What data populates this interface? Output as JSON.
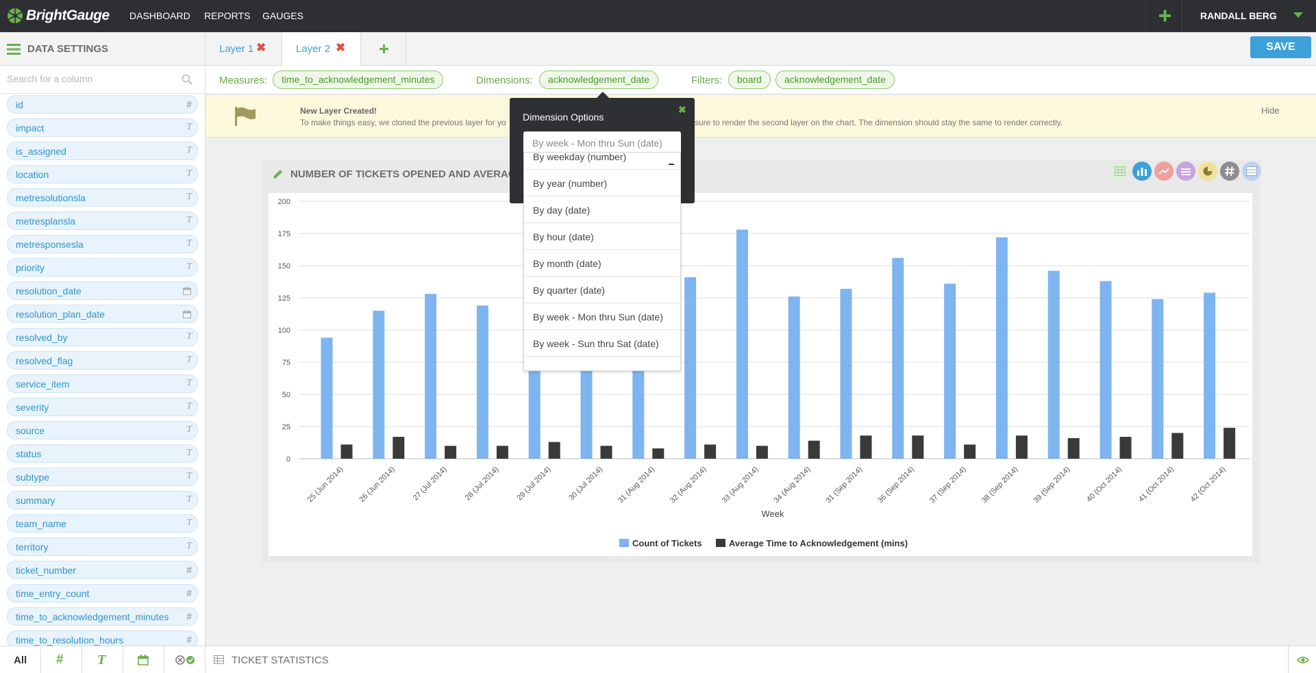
{
  "app": {
    "name": "BrightGauge"
  },
  "nav": [
    {
      "label": "DASHBOARD"
    },
    {
      "label": "REPORTS"
    },
    {
      "label": "GAUGES"
    }
  ],
  "user": {
    "name": "RANDALL BERG"
  },
  "subbar": {
    "title": "DATA SETTINGS",
    "save_label": "SAVE"
  },
  "tabs": [
    {
      "label": "Layer 1"
    },
    {
      "label": "Layer 2"
    }
  ],
  "search": {
    "placeholder": "Search for a column"
  },
  "columns": [
    {
      "name": "id",
      "type": "#"
    },
    {
      "name": "impact",
      "type": "T"
    },
    {
      "name": "is_assigned",
      "type": "T"
    },
    {
      "name": "location",
      "type": "T"
    },
    {
      "name": "metresolutionsla",
      "type": "T"
    },
    {
      "name": "metresplansla",
      "type": "T"
    },
    {
      "name": "metresponsesla",
      "type": "T"
    },
    {
      "name": "priority",
      "type": "T"
    },
    {
      "name": "resolution_date",
      "type": "date"
    },
    {
      "name": "resolution_plan_date",
      "type": "date"
    },
    {
      "name": "resolved_by",
      "type": "T"
    },
    {
      "name": "resolved_flag",
      "type": "T"
    },
    {
      "name": "service_item",
      "type": "T"
    },
    {
      "name": "severity",
      "type": "T"
    },
    {
      "name": "source",
      "type": "T"
    },
    {
      "name": "status",
      "type": "T"
    },
    {
      "name": "subtype",
      "type": "T"
    },
    {
      "name": "summary",
      "type": "T"
    },
    {
      "name": "team_name",
      "type": "T"
    },
    {
      "name": "territory",
      "type": "T"
    },
    {
      "name": "ticket_number",
      "type": "#"
    },
    {
      "name": "time_entry_count",
      "type": "#"
    },
    {
      "name": "time_to_acknowledgement_minutes",
      "type": "#"
    },
    {
      "name": "time_to_resolution_hours",
      "type": "#"
    }
  ],
  "bottom": {
    "all_label": "All",
    "num_label": "#",
    "text_label": "T",
    "dataset": "TICKET STATISTICS"
  },
  "pills": {
    "measures_label": "Measures:",
    "measures": [
      "time_to_acknowledgement_minutes"
    ],
    "dimensions_label": "Dimensions:",
    "dimensions": [
      "acknowledgement_date"
    ],
    "filters_label": "Filters:",
    "filters": [
      "board",
      "acknowledgement_date"
    ]
  },
  "notice": {
    "title": "New Layer Created!",
    "text_left": "To make things easy, we cloned the previous layer for yo",
    "text_right": "sure to render the second layer on the chart. The dimension should stay the same to render correctly.",
    "hide_label": "Hide"
  },
  "chart_title": "NUMBER OF TICKETS OPENED AND AVERAG",
  "popup": {
    "title": "Dimension Options",
    "selected": "By week - Mon thru Sun (date)",
    "options": [
      "By weekday (number)",
      "By year (number)",
      "By day (date)",
      "By hour (date)",
      "By month (date)",
      "By quarter (date)",
      "By week - Mon thru Sun (date)",
      "By week - Sun thru Sat (date)"
    ]
  },
  "colors": {
    "accent": "#3ea0d8",
    "green": "#6ab04c",
    "bar1": "#7eb4ef",
    "bar2": "#3a3a3a"
  },
  "chart_data": {
    "type": "bar",
    "categories": [
      "25 (Jun 2014)",
      "26 (Jun 2014)",
      "27 (Jul 2014)",
      "28 (Jul 2014)",
      "29 (Jul 2014)",
      "30 (Jul 2014)",
      "31 (Aug 2014)",
      "32 (Aug 2014)",
      "33 (Aug 2014)",
      "34 (Aug 2014)",
      "31 (Sep 2014)",
      "36 (Sep 2014)",
      "37 (Sep 2014)",
      "38 (Sep 2014)",
      "39 (Sep 2014)",
      "40 (Oct 2014)",
      "41 (Oct 2014)",
      "42 (Oct 2014)"
    ],
    "series": [
      {
        "name": "Count of Tickets",
        "values": [
          94,
          115,
          128,
          119,
          70,
          70,
          70,
          141,
          178,
          126,
          132,
          156,
          136,
          172,
          146,
          138,
          124,
          129
        ]
      },
      {
        "name": "Average Time to Acknowledgement (mins)",
        "values": [
          11,
          17,
          10,
          10,
          13,
          10,
          8,
          11,
          10,
          14,
          18,
          18,
          11,
          18,
          16,
          17,
          20,
          24
        ]
      }
    ],
    "xlabel": "Week",
    "ylabel": "",
    "ylim": [
      0,
      200
    ],
    "yticks": [
      0,
      25,
      50,
      75,
      100,
      125,
      150,
      175,
      200
    ],
    "grid": true,
    "legend": "bottom"
  }
}
